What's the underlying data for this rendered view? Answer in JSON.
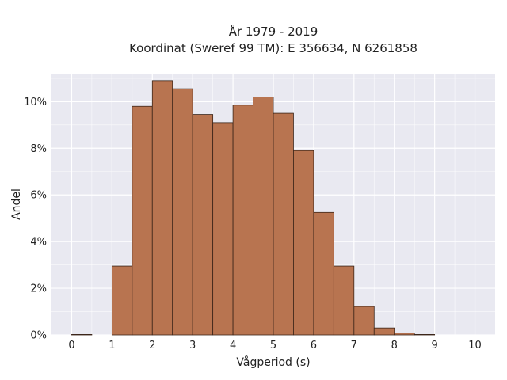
{
  "chart_data": {
    "type": "bar",
    "title_lines": [
      "År 1979 - 2019",
      "Koordinat (Sweref 99 TM): E 356634, N 6261858"
    ],
    "xlabel": "Vågperiod (s)",
    "ylabel": "Andel",
    "xlim": [
      -0.5,
      10.5
    ],
    "ylim": [
      0,
      11.2
    ],
    "x_ticks": [
      0,
      1,
      2,
      3,
      4,
      5,
      6,
      7,
      8,
      9,
      10
    ],
    "y_ticks": [
      0,
      2,
      4,
      6,
      8,
      10
    ],
    "y_tick_labels": [
      "0%",
      "2%",
      "4%",
      "6%",
      "8%",
      "10%"
    ],
    "bin_width": 0.5,
    "bins": [
      {
        "x0": 0.0,
        "value": 0.02
      },
      {
        "x0": 0.5,
        "value": 0.0
      },
      {
        "x0": 1.0,
        "value": 2.95
      },
      {
        "x0": 1.5,
        "value": 9.8
      },
      {
        "x0": 2.0,
        "value": 10.9
      },
      {
        "x0": 2.5,
        "value": 10.55
      },
      {
        "x0": 3.0,
        "value": 9.45
      },
      {
        "x0": 3.5,
        "value": 9.1
      },
      {
        "x0": 4.0,
        "value": 9.85
      },
      {
        "x0": 4.5,
        "value": 10.2
      },
      {
        "x0": 5.0,
        "value": 9.5
      },
      {
        "x0": 5.5,
        "value": 7.9
      },
      {
        "x0": 6.0,
        "value": 5.25
      },
      {
        "x0": 6.5,
        "value": 2.95
      },
      {
        "x0": 7.0,
        "value": 1.22
      },
      {
        "x0": 7.5,
        "value": 0.3
      },
      {
        "x0": 8.0,
        "value": 0.08
      },
      {
        "x0": 8.5,
        "value": 0.02
      }
    ],
    "bar_color": "#b87450",
    "bar_edge_color": "#3a2418",
    "plot_bg": "#e9e9f1",
    "grid": true,
    "grid_color": "#ffffff"
  }
}
